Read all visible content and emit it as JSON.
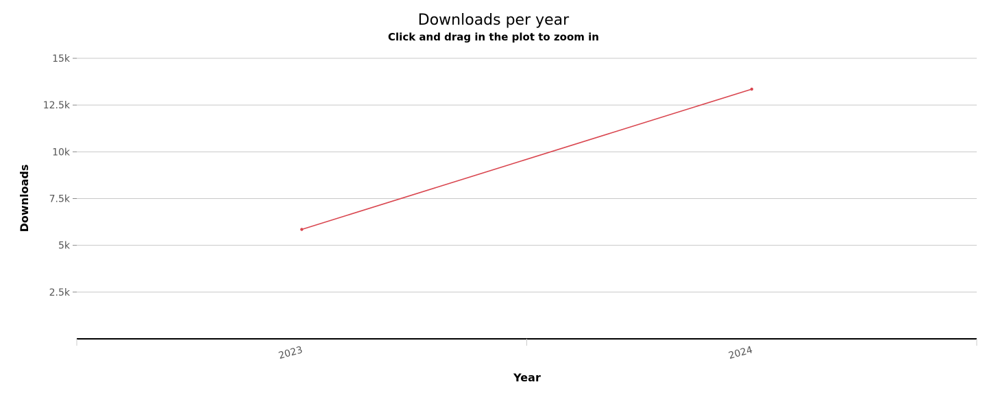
{
  "chart_data": {
    "type": "line",
    "title": "Downloads per year",
    "subtitle": "Click and drag in the plot to zoom in",
    "xlabel": "Year",
    "ylabel": "Downloads",
    "categories": [
      "2023",
      "2024"
    ],
    "series": [
      {
        "values": [
          5850,
          13350
        ],
        "color": "#d9464f"
      }
    ],
    "ylim": [
      0,
      15000
    ],
    "yticks": [
      2500,
      5000,
      7500,
      10000,
      12500,
      15000
    ],
    "ytick_labels": [
      "2.5k",
      "5k",
      "7.5k",
      "10k",
      "12.5k",
      "15k"
    ],
    "grid": true,
    "legend": "none"
  }
}
